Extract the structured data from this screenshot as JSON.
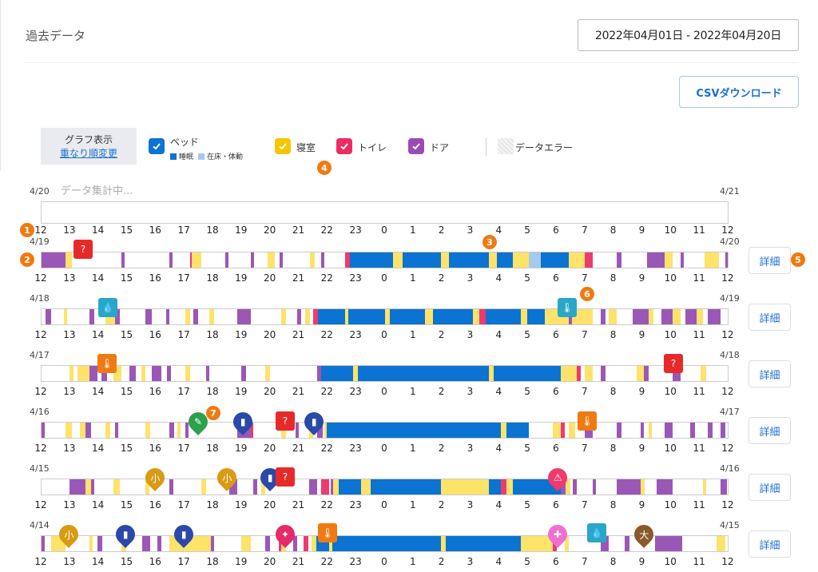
{
  "header": {
    "title": "過去データ",
    "date_range": "2022年04月01日 - 2022年04月20日",
    "csv_button": "CSVダウンロード"
  },
  "graph_mode": {
    "label": "グラフ表示",
    "link": "重なり順変更"
  },
  "legend": {
    "bed": {
      "label": "ベッド",
      "sub1": "睡眠",
      "sub2": "在床・体動",
      "color": "#0b73d1",
      "sub2_color": "#a6c9ee"
    },
    "bedroom": {
      "label": "寝室",
      "color": "#f5c500"
    },
    "toilet": {
      "label": "トイレ",
      "color": "#ee2c64"
    },
    "door": {
      "label": "ドア",
      "color": "#9b4bb4"
    },
    "error": {
      "label": "データエラー"
    }
  },
  "colors": {
    "bed": "#0b73d1",
    "inbed": "#a6c9ee",
    "room": "#fde36a",
    "toilet": "#ee3a6e",
    "door": "#9b57b6",
    "error": "#d7d7d7"
  },
  "markers": [
    "1",
    "2",
    "3",
    "4",
    "5",
    "6",
    "7"
  ],
  "hour_ticks": [
    "12",
    "13",
    "14",
    "15",
    "16",
    "17",
    "18",
    "19",
    "20",
    "21",
    "22",
    "23",
    "0",
    "1",
    "2",
    "3",
    "4",
    "5",
    "6",
    "7",
    "8",
    "9",
    "10",
    "11",
    "12"
  ],
  "collecting_text": "データ集計中...",
  "detail_label": "詳細",
  "rows": [
    {
      "left": "4/20",
      "right": "4/21",
      "segments": []
    },
    {
      "left": "4/19",
      "right": "4/20",
      "segments": [
        [
          "door",
          0,
          30
        ],
        [
          "room",
          30,
          38
        ],
        [
          "door",
          100,
          104
        ],
        [
          "door",
          160,
          164
        ],
        [
          "toilet",
          186,
          188
        ],
        [
          "room",
          188,
          200
        ],
        [
          "door",
          230,
          234
        ],
        [
          "door",
          262,
          266
        ],
        [
          "room",
          283,
          292
        ],
        [
          "door",
          298,
          302
        ],
        [
          "room",
          336,
          342
        ],
        [
          "door",
          350,
          354
        ],
        [
          "toilet",
          380,
          386
        ],
        [
          "bed",
          386,
          440
        ],
        [
          "room",
          440,
          452
        ],
        [
          "bed",
          452,
          500
        ],
        [
          "room",
          500,
          510
        ],
        [
          "bed",
          510,
          560
        ],
        [
          "room",
          560,
          570
        ],
        [
          "bed",
          570,
          590
        ],
        [
          "room",
          590,
          610
        ],
        [
          "inbed",
          610,
          625
        ],
        [
          "bed",
          625,
          660
        ],
        [
          "room",
          660,
          680
        ],
        [
          "toilet",
          680,
          690
        ],
        [
          "door",
          720,
          726
        ],
        [
          "door",
          758,
          780
        ],
        [
          "room",
          780,
          790
        ],
        [
          "door",
          800,
          804
        ],
        [
          "room",
          830,
          848
        ],
        [
          "door",
          856,
          860
        ]
      ]
    },
    {
      "left": "4/18",
      "right": "4/19",
      "segments": [
        [
          "door",
          5,
          12
        ],
        [
          "room",
          28,
          32
        ],
        [
          "door",
          60,
          66
        ],
        [
          "room",
          80,
          92
        ],
        [
          "door",
          92,
          98
        ],
        [
          "door",
          130,
          138
        ],
        [
          "door",
          156,
          160
        ],
        [
          "room",
          180,
          186
        ],
        [
          "door",
          190,
          196
        ],
        [
          "room",
          210,
          216
        ],
        [
          "door",
          245,
          262
        ],
        [
          "room",
          300,
          306
        ],
        [
          "door",
          320,
          325
        ],
        [
          "room",
          330,
          336
        ],
        [
          "toilet",
          340,
          346
        ],
        [
          "bed",
          346,
          380
        ],
        [
          "room",
          380,
          384
        ],
        [
          "bed",
          384,
          430
        ],
        [
          "room",
          430,
          436
        ],
        [
          "bed",
          436,
          480
        ],
        [
          "room",
          480,
          490
        ],
        [
          "bed",
          490,
          540
        ],
        [
          "room",
          540,
          548
        ],
        [
          "toilet",
          548,
          556
        ],
        [
          "bed",
          556,
          600
        ],
        [
          "room",
          600,
          608
        ],
        [
          "bed",
          608,
          630
        ],
        [
          "room",
          630,
          660
        ],
        [
          "door",
          660,
          664
        ],
        [
          "room",
          664,
          690
        ],
        [
          "door",
          700,
          706
        ],
        [
          "room",
          710,
          720
        ],
        [
          "door",
          740,
          760
        ],
        [
          "room",
          760,
          766
        ],
        [
          "door",
          776,
          790
        ],
        [
          "room",
          790,
          800
        ],
        [
          "door",
          806,
          820
        ],
        [
          "room",
          820,
          828
        ],
        [
          "door",
          834,
          850
        ]
      ]
    },
    {
      "left": "4/17",
      "right": "4/18",
      "segments": [
        [
          "room",
          35,
          40
        ],
        [
          "room",
          45,
          60
        ],
        [
          "door",
          60,
          70
        ],
        [
          "door",
          75,
          82
        ],
        [
          "room",
          90,
          100
        ],
        [
          "door",
          110,
          118
        ],
        [
          "room",
          125,
          130
        ],
        [
          "door",
          138,
          150
        ],
        [
          "door",
          157,
          162
        ],
        [
          "room",
          180,
          186
        ],
        [
          "door",
          206,
          210
        ],
        [
          "door",
          250,
          256
        ],
        [
          "room",
          280,
          286
        ],
        [
          "door",
          345,
          350
        ],
        [
          "bed",
          350,
          390
        ],
        [
          "room",
          390,
          396
        ],
        [
          "bed",
          396,
          560
        ],
        [
          "room",
          560,
          566
        ],
        [
          "bed",
          566,
          650
        ],
        [
          "room",
          650,
          670
        ],
        [
          "toilet",
          670,
          675
        ],
        [
          "room",
          680,
          690
        ],
        [
          "door",
          700,
          706
        ],
        [
          "room",
          745,
          754
        ],
        [
          "door",
          754,
          760
        ],
        [
          "door",
          790,
          800
        ],
        [
          "room",
          825,
          832
        ]
      ]
    },
    {
      "left": "4/16",
      "right": "4/17",
      "segments": [
        [
          "door",
          0,
          4
        ],
        [
          "room",
          30,
          38
        ],
        [
          "room",
          48,
          55
        ],
        [
          "door",
          55,
          62
        ],
        [
          "room",
          80,
          86
        ],
        [
          "door",
          92,
          96
        ],
        [
          "room",
          130,
          136
        ],
        [
          "door",
          160,
          166
        ],
        [
          "room",
          170,
          174
        ],
        [
          "door",
          180,
          184
        ],
        [
          "door",
          245,
          262
        ],
        [
          "toilet",
          262,
          265
        ],
        [
          "room",
          300,
          306
        ],
        [
          "door",
          318,
          322
        ],
        [
          "room",
          335,
          340
        ],
        [
          "door",
          345,
          352
        ],
        [
          "room",
          354,
          357
        ],
        [
          "bed",
          357,
          575
        ],
        [
          "room",
          575,
          582
        ],
        [
          "bed",
          582,
          610
        ],
        [
          "room",
          640,
          650
        ],
        [
          "toilet",
          650,
          655
        ],
        [
          "room",
          660,
          668
        ],
        [
          "door",
          680,
          690
        ],
        [
          "door",
          720,
          726
        ],
        [
          "door",
          750,
          754
        ],
        [
          "room",
          760,
          764
        ],
        [
          "door",
          780,
          790
        ],
        [
          "door",
          812,
          818
        ],
        [
          "door",
          834,
          840
        ],
        [
          "door",
          850,
          856
        ]
      ]
    },
    {
      "left": "4/15",
      "right": "4/16",
      "segments": [
        [
          "door",
          35,
          55
        ],
        [
          "room",
          55,
          62
        ],
        [
          "door",
          62,
          66
        ],
        [
          "room",
          90,
          98
        ],
        [
          "room",
          130,
          135
        ],
        [
          "door",
          160,
          165
        ],
        [
          "room",
          200,
          206
        ],
        [
          "door",
          235,
          245
        ],
        [
          "door",
          265,
          270
        ],
        [
          "room",
          275,
          280
        ],
        [
          "door",
          335,
          345
        ],
        [
          "toilet",
          350,
          360
        ],
        [
          "door",
          362,
          365
        ],
        [
          "room",
          365,
          372
        ],
        [
          "bed",
          372,
          400
        ],
        [
          "room",
          400,
          412
        ],
        [
          "bed",
          412,
          500
        ],
        [
          "room",
          500,
          560
        ],
        [
          "bed",
          560,
          575
        ],
        [
          "toilet",
          575,
          582
        ],
        [
          "room",
          582,
          590
        ],
        [
          "bed",
          590,
          650
        ],
        [
          "door",
          650,
          656
        ],
        [
          "room",
          656,
          662
        ],
        [
          "door",
          665,
          670
        ],
        [
          "door",
          690,
          694
        ],
        [
          "door",
          720,
          750
        ],
        [
          "room",
          750,
          755
        ],
        [
          "door",
          770,
          790
        ],
        [
          "room",
          828,
          832
        ],
        [
          "door",
          850,
          858
        ]
      ]
    },
    {
      "left": "4/14",
      "right": "4/15",
      "segments": [
        [
          "door",
          0,
          4
        ],
        [
          "room",
          12,
          30
        ],
        [
          "room",
          60,
          64
        ],
        [
          "door",
          70,
          76
        ],
        [
          "room",
          100,
          106
        ],
        [
          "door",
          126,
          136
        ],
        [
          "door",
          145,
          150
        ],
        [
          "room",
          160,
          212
        ],
        [
          "door",
          212,
          216
        ],
        [
          "room",
          250,
          262
        ],
        [
          "door",
          280,
          286
        ],
        [
          "toilet",
          297,
          300
        ],
        [
          "room",
          300,
          306
        ],
        [
          "door",
          315,
          320
        ],
        [
          "toilet",
          328,
          334
        ],
        [
          "room",
          338,
          344
        ],
        [
          "bed",
          344,
          360
        ],
        [
          "room",
          360,
          364
        ],
        [
          "bed",
          364,
          500
        ],
        [
          "room",
          500,
          506
        ],
        [
          "bed",
          506,
          600
        ],
        [
          "room",
          600,
          640
        ],
        [
          "toilet",
          640,
          645
        ],
        [
          "room",
          655,
          660
        ],
        [
          "door",
          700,
          710
        ],
        [
          "door",
          730,
          736
        ],
        [
          "door",
          768,
          802
        ],
        [
          "room",
          845,
          856
        ]
      ]
    }
  ]
}
